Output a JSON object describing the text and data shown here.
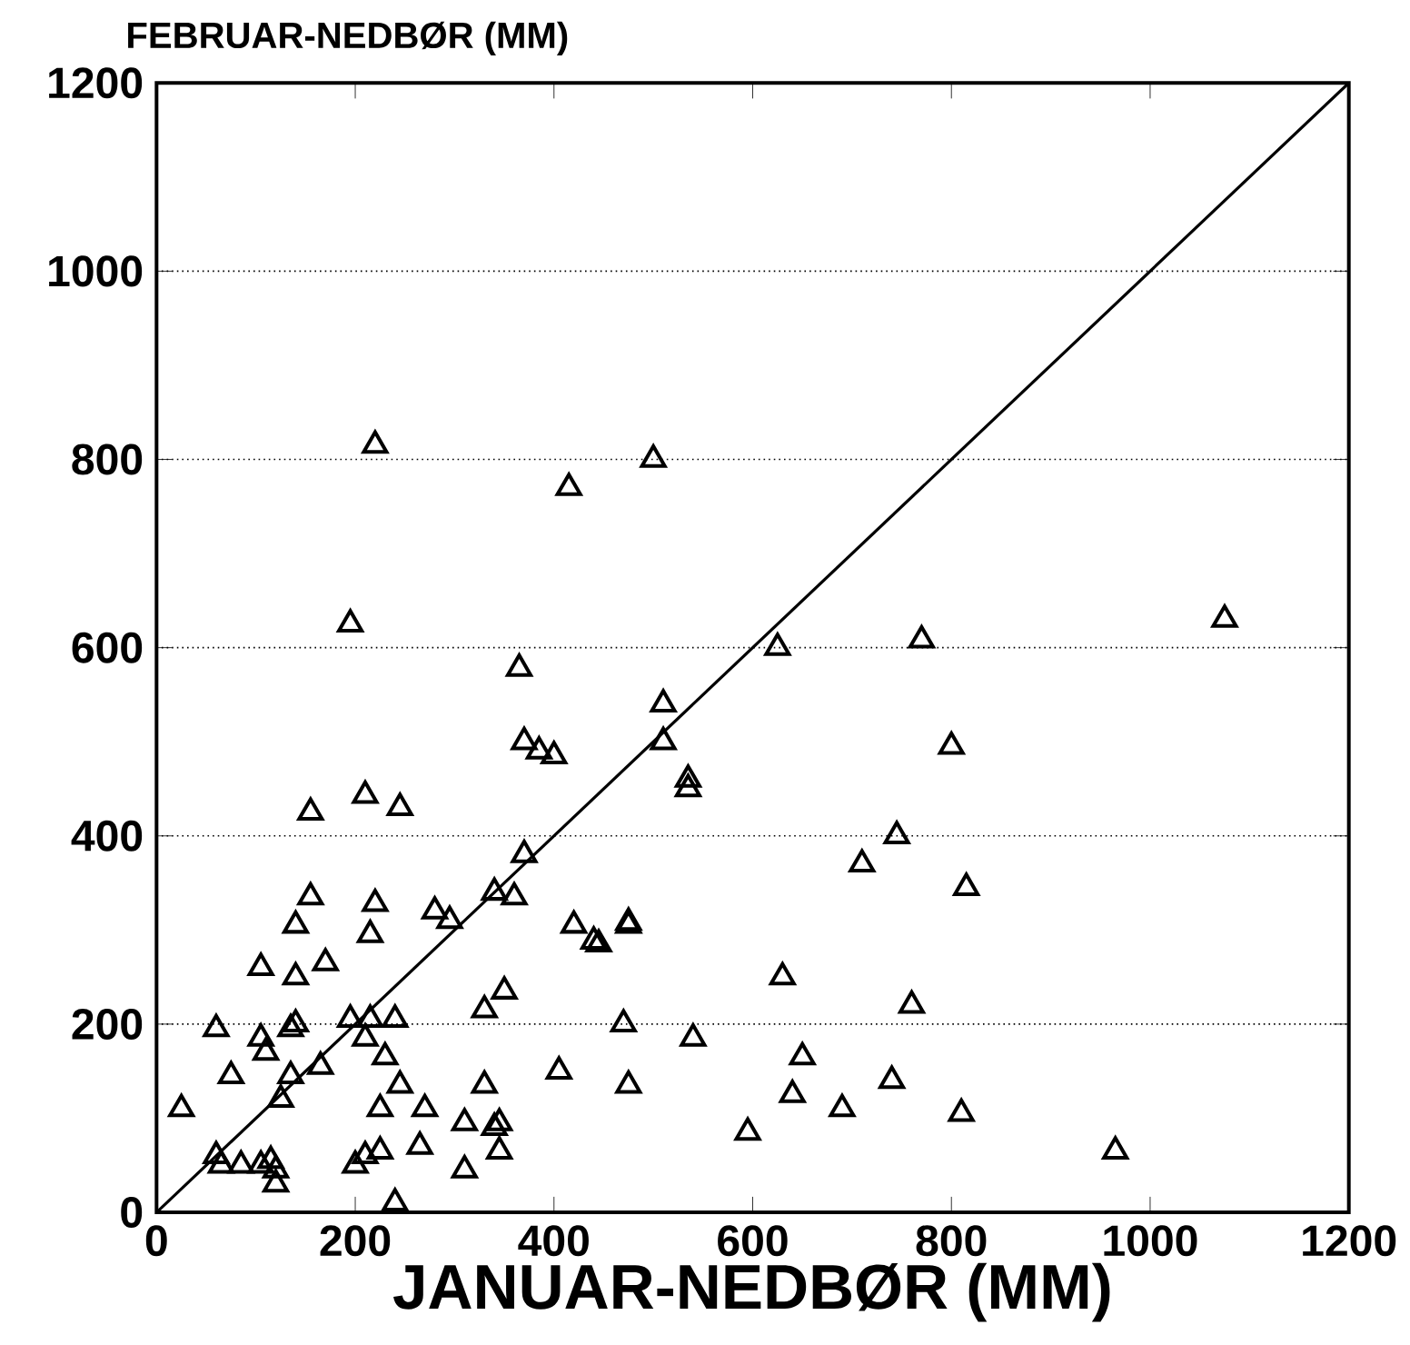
{
  "chart_data": {
    "type": "scatter",
    "xlabel": "JANUAR-NEDBØR (MM)",
    "ylabel": "FEBRUAR-NEDBØR (MM)",
    "xlim": [
      0,
      1200
    ],
    "ylim": [
      0,
      1200
    ],
    "xticks": [
      0,
      200,
      400,
      600,
      800,
      1000,
      1200
    ],
    "yticks": [
      0,
      200,
      400,
      600,
      800,
      1000,
      1200
    ],
    "grid": "y",
    "marker": "triangle",
    "series": [
      {
        "color": "#000000",
        "x": [
          220,
          500,
          415,
          195,
          1075,
          770,
          625,
          365,
          510,
          370,
          385,
          400,
          510,
          800,
          210,
          245,
          155,
          535,
          535,
          745,
          370,
          710,
          815,
          340,
          360,
          155,
          220,
          280,
          295,
          140,
          475,
          475,
          420,
          440,
          445,
          215,
          170,
          105,
          140,
          350,
          630,
          330,
          760,
          60,
          135,
          140,
          195,
          215,
          240,
          105,
          210,
          110,
          230,
          165,
          470,
          540,
          650,
          75,
          135,
          245,
          330,
          740,
          475,
          405,
          125,
          225,
          270,
          690,
          810,
          640,
          345,
          340,
          310,
          60,
          65,
          85,
          105,
          115,
          120,
          120,
          200,
          210,
          225,
          265,
          310,
          345,
          595,
          965,
          240,
          25
        ],
        "values": [
          815,
          800,
          770,
          625,
          630,
          608,
          600,
          578,
          540,
          500,
          490,
          485,
          500,
          495,
          443,
          430,
          425,
          460,
          450,
          400,
          380,
          370,
          345,
          340,
          335,
          335,
          328,
          320,
          310,
          305,
          308,
          305,
          305,
          288,
          285,
          295,
          265,
          260,
          250,
          235,
          250,
          215,
          220,
          195,
          195,
          200,
          205,
          205,
          205,
          185,
          185,
          170,
          165,
          155,
          200,
          185,
          165,
          145,
          145,
          135,
          135,
          140,
          135,
          150,
          120,
          110,
          110,
          110,
          105,
          125,
          95,
          90,
          95,
          60,
          50,
          50,
          50,
          55,
          45,
          30,
          50,
          60,
          65,
          70,
          45,
          65,
          85,
          65,
          10,
          110
        ]
      },
      {
        "type": "line",
        "color": "#000000",
        "marker": "none",
        "line_style": "solid",
        "x": [
          0,
          1200
        ],
        "values": [
          0,
          1200
        ]
      }
    ]
  }
}
